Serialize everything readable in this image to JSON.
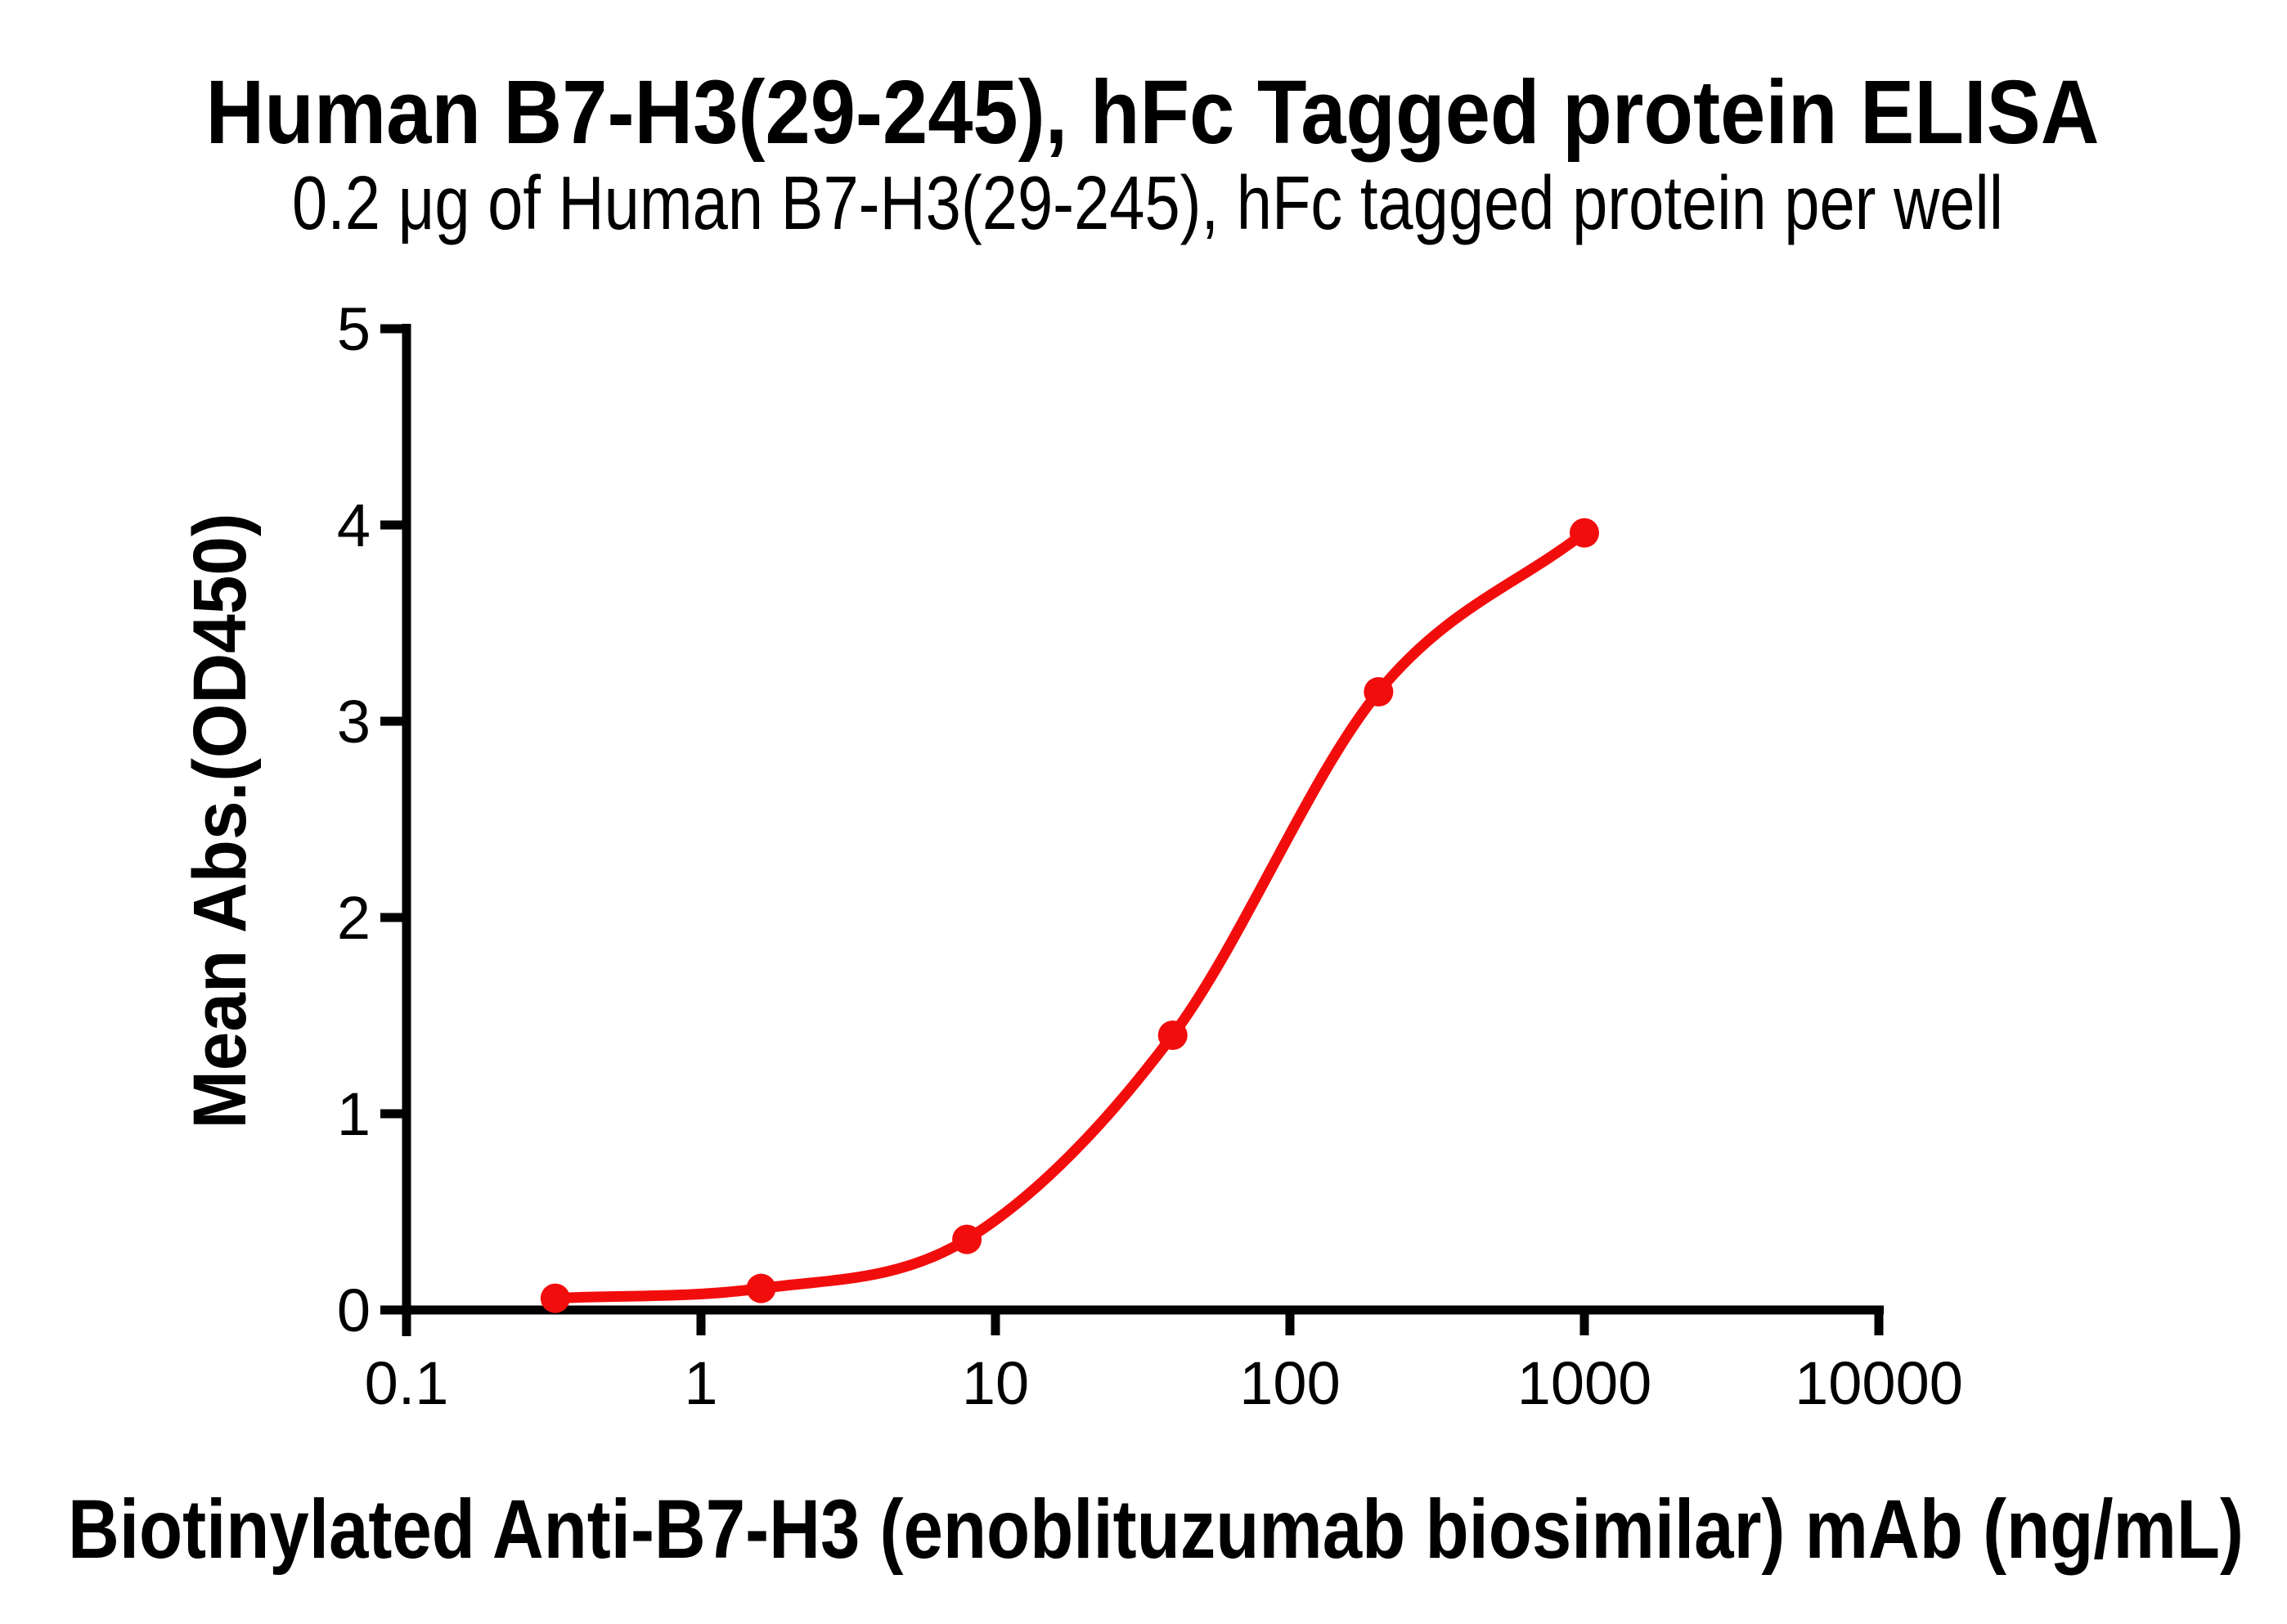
{
  "chart_data": {
    "type": "scatter",
    "title": "Human B7-H3(29-245), hFc Tagged protein ELISA",
    "subtitle": "0.2 μg of Human B7-H3(29-245), hFc tagged protein per well",
    "xlabel": "Biotinylated Anti-B7-H3 (enoblituzumab biosimilar) mAb (ng/mL)",
    "ylabel": "Mean Abs.(OD450)",
    "x_scale": "log",
    "xlim": [
      0.1,
      10000
    ],
    "ylim": [
      0,
      5
    ],
    "x_tick_labels": [
      "0.1",
      "1",
      "10",
      "100",
      "1000",
      "10000"
    ],
    "y_tick_labels": [
      "0",
      "1",
      "2",
      "3",
      "4",
      "5"
    ],
    "grid": false,
    "legend": "none",
    "series": [
      {
        "x": [
          0.32,
          1.6,
          8,
          40,
          200,
          1000
        ],
        "y": [
          0.06,
          0.11,
          0.36,
          1.4,
          3.15,
          3.96
        ],
        "color": "#f20d0d",
        "marker": "circle",
        "curve": "smooth-sigmoid"
      }
    ]
  },
  "colors": {
    "axis": "#000000",
    "background": "#ffffff",
    "accent_red": "#f20d0d"
  }
}
